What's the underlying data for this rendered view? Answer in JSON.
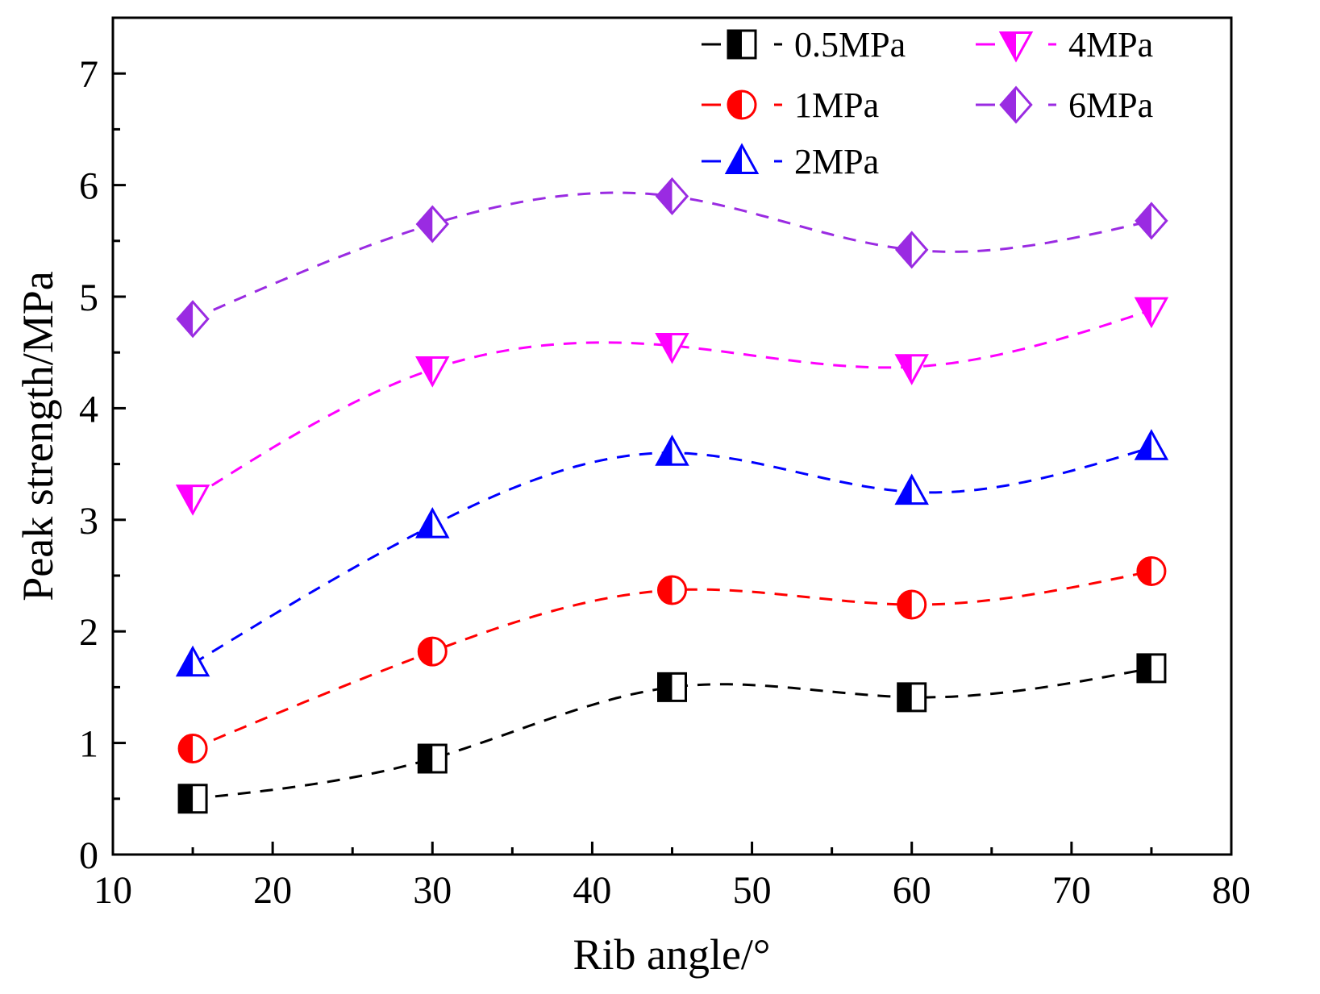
{
  "chart_data": {
    "type": "scatter",
    "xlabel": "Rib angle/°",
    "ylabel": "Peak strength/MPa",
    "xlim": [
      10,
      80
    ],
    "ylim": [
      0,
      7.5
    ],
    "x_ticks": [
      10,
      20,
      30,
      40,
      50,
      60,
      70,
      80
    ],
    "x_tick_labels": [
      "10",
      "20",
      "30",
      "40",
      "50",
      "60",
      "70",
      "80"
    ],
    "y_ticks": [
      0,
      1,
      2,
      3,
      4,
      5,
      6,
      7
    ],
    "y_tick_labels": [
      "0",
      "1",
      "2",
      "3",
      "4",
      "5",
      "6",
      "7"
    ],
    "grid": false,
    "legend_position": "top-right",
    "fit_lines": "dashed smooth curves",
    "x": [
      15,
      30,
      45,
      60,
      75
    ],
    "series": [
      {
        "name": "0.5MPa",
        "marker": "square-half",
        "color": "#000000",
        "values": [
          0.5,
          0.86,
          1.5,
          1.41,
          1.67
        ]
      },
      {
        "name": "1MPa",
        "marker": "circle-half",
        "color": "#ff0000",
        "values": [
          0.95,
          1.82,
          2.37,
          2.24,
          2.54
        ]
      },
      {
        "name": "2MPa",
        "marker": "triangle-up-half",
        "color": "#0000ff",
        "values": [
          1.71,
          2.95,
          3.6,
          3.25,
          3.65
        ]
      },
      {
        "name": "4MPa",
        "marker": "triangle-down-half",
        "color": "#ff00ff",
        "values": [
          3.2,
          4.35,
          4.56,
          4.37,
          4.88
        ]
      },
      {
        "name": "6MPa",
        "marker": "diamond-half",
        "color": "#9a2be2",
        "values": [
          4.8,
          5.65,
          5.9,
          5.42,
          5.68
        ]
      }
    ]
  }
}
